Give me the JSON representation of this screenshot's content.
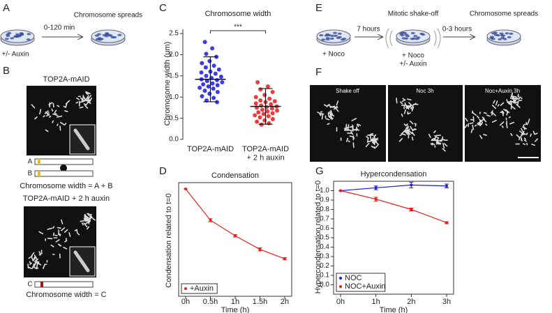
{
  "panel_labels": [
    "A",
    "B",
    "C",
    "D",
    "E",
    "F",
    "G"
  ],
  "panel_a": {
    "time": "0-120 min",
    "result": "Chromosome spreads",
    "treatment": "+/- Auxin"
  },
  "panel_b": {
    "title_1": "TOP2A-mAID",
    "bar_a": "A",
    "bar_b": "B",
    "formula_1": "Chromosome width = A + B",
    "title_2": "TOP2A-mAID + 2 h auxin",
    "bar_c": "C",
    "formula_2": "Chromosome width = C"
  },
  "panel_e": {
    "start": "+ Noco",
    "step_1": "7 hours",
    "middle": "Mitotic shake-off",
    "middle_treatment_1": "+ Noco",
    "middle_treatment_2": "+/- Auxin",
    "step_2": "0-3 hours",
    "result": "Chromosome spreads"
  },
  "panel_f": {
    "titles": [
      "Shake off",
      "Noc 3h",
      "Noc+Auxin 3h"
    ]
  },
  "chart_data": [
    {
      "type": "dot",
      "title": "Chromosome width",
      "y_label": "Chromosome width (μm)",
      "categories": [
        "TOP2A-mAID",
        "TOP2A-mAID\n+ 2 h auxin"
      ],
      "groups": [
        {
          "color": "#1a1ae6",
          "mean": 1.42,
          "sd": 0.53,
          "values": [
            2.3,
            2.15,
            2.02,
            1.95,
            1.85,
            1.8,
            1.74,
            1.7,
            1.65,
            1.6,
            1.58,
            1.55,
            1.5,
            1.48,
            1.45,
            1.42,
            1.4,
            1.38,
            1.35,
            1.32,
            1.3,
            1.28,
            1.25,
            1.22,
            1.2,
            1.15,
            1.12,
            1.08,
            1.02,
            0.98,
            0.92,
            0.88
          ]
        },
        {
          "color": "#e61a1a",
          "mean": 0.78,
          "sd": 0.42,
          "values": [
            1.35,
            1.25,
            1.18,
            1.12,
            1.05,
            1.0,
            0.96,
            0.92,
            0.9,
            0.88,
            0.85,
            0.83,
            0.8,
            0.78,
            0.76,
            0.75,
            0.73,
            0.7,
            0.68,
            0.66,
            0.64,
            0.62,
            0.6,
            0.57,
            0.55,
            0.52,
            0.48,
            0.45,
            0.42,
            0.38,
            0.35
          ]
        }
      ],
      "significance": "***",
      "ylim": [
        0,
        2.6
      ],
      "yticks": [
        {
          "value": 0,
          "label": "0.0"
        },
        0.5,
        {
          "value": 1,
          "label": "1.0"
        },
        1.5,
        {
          "value": 2,
          "label": "2.0"
        },
        2.5
      ]
    },
    {
      "type": "line",
      "title": "Condensation",
      "x_label": "Time (h)",
      "y_label": "Condensation related to t=0",
      "categories": [
        "0h",
        "0.5h",
        "1h",
        "1.5h",
        "2h"
      ],
      "series": [
        {
          "name": "+Auxin",
          "color": "#e8211f",
          "values": [
            1,
            0.7,
            0.55,
            0.42,
            0.33
          ],
          "errors": [
            0,
            0.015,
            0.012,
            0.015,
            0.01
          ]
        }
      ],
      "ylim": [
        -0.03,
        1.06
      ],
      "legend": "lower left"
    },
    {
      "type": "line",
      "title": "Hypercondensation",
      "x_label": "Time (h)",
      "y_label": "Hypercondensation related to t=0",
      "categories": [
        "0h",
        "1h",
        "2h",
        "3h"
      ],
      "series": [
        {
          "name": "NOC",
          "color": "#1a1ae6",
          "values": [
            1,
            1.03,
            1.06,
            1.05
          ],
          "errors": [
            0,
            0.02,
            0.03,
            0.02
          ]
        },
        {
          "name": "NOC+Auxin",
          "color": "#e61a1a",
          "values": [
            1,
            0.91,
            0.8,
            0.66
          ],
          "errors": [
            0,
            0.02,
            0.015,
            0.01
          ]
        }
      ],
      "ylim": [
        -0.1,
        1.1
      ],
      "yticks": [
        {
          "value": 0,
          "label": "0.0"
        },
        0.1,
        0.2,
        0.3,
        0.4,
        0.5,
        0.6,
        0.7,
        0.8,
        0.9,
        {
          "value": 1,
          "label": "1.0"
        }
      ],
      "legend": "lower left"
    }
  ]
}
